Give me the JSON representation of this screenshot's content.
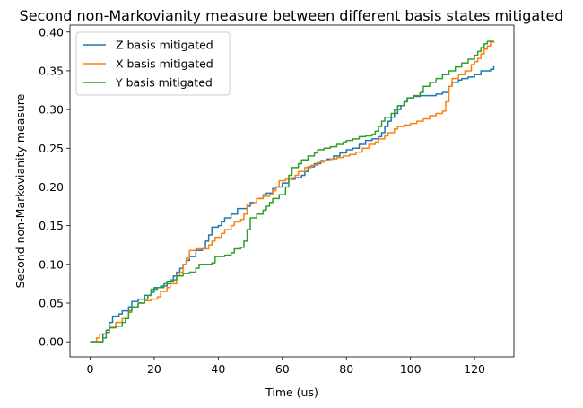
{
  "chart_data": {
    "type": "line",
    "title": "Second non-Markovianity measure between different basis states mitigated",
    "xlabel": "Time (us)",
    "ylabel": "Second non-Markovianity measure",
    "xlim": [
      -6.3,
      132.3
    ],
    "ylim": [
      -0.0195,
      0.409
    ],
    "xticks": [
      0,
      20,
      40,
      60,
      80,
      100,
      120
    ],
    "yticks": [
      0.0,
      0.05,
      0.1,
      0.15,
      0.2,
      0.25,
      0.3,
      0.35,
      0.4
    ],
    "xtick_labels": [
      "0",
      "20",
      "40",
      "60",
      "80",
      "100",
      "120"
    ],
    "ytick_labels": [
      "0.00",
      "0.05",
      "0.10",
      "0.15",
      "0.20",
      "0.25",
      "0.30",
      "0.35",
      "0.40"
    ],
    "grid": false,
    "legend_position": "upper-left",
    "series": [
      {
        "name": "Z basis mitigated",
        "color": "#1f77b4",
        "step": true,
        "points": [
          [
            0,
            0.0
          ],
          [
            3,
            0.0
          ],
          [
            4,
            0.01
          ],
          [
            5,
            0.015
          ],
          [
            6,
            0.025
          ],
          [
            7,
            0.033
          ],
          [
            9,
            0.036
          ],
          [
            10,
            0.04
          ],
          [
            12,
            0.045
          ],
          [
            13,
            0.052
          ],
          [
            15,
            0.055
          ],
          [
            17,
            0.06
          ],
          [
            19,
            0.064
          ],
          [
            20,
            0.07
          ],
          [
            22,
            0.072
          ],
          [
            24,
            0.078
          ],
          [
            26,
            0.085
          ],
          [
            27,
            0.09
          ],
          [
            28,
            0.095
          ],
          [
            29,
            0.1
          ],
          [
            30,
            0.105
          ],
          [
            31,
            0.11
          ],
          [
            33,
            0.118
          ],
          [
            35,
            0.12
          ],
          [
            36,
            0.13
          ],
          [
            37,
            0.138
          ],
          [
            38,
            0.148
          ],
          [
            40,
            0.15
          ],
          [
            41,
            0.155
          ],
          [
            42,
            0.16
          ],
          [
            44,
            0.165
          ],
          [
            46,
            0.172
          ],
          [
            48,
            0.172
          ],
          [
            49,
            0.175
          ],
          [
            50,
            0.18
          ],
          [
            52,
            0.185
          ],
          [
            54,
            0.19
          ],
          [
            55,
            0.192
          ],
          [
            57,
            0.198
          ],
          [
            58,
            0.2
          ],
          [
            60,
            0.205
          ],
          [
            62,
            0.21
          ],
          [
            64,
            0.212
          ],
          [
            66,
            0.215
          ],
          [
            67,
            0.22
          ],
          [
            68,
            0.226
          ],
          [
            70,
            0.23
          ],
          [
            72,
            0.234
          ],
          [
            74,
            0.236
          ],
          [
            76,
            0.24
          ],
          [
            78,
            0.244
          ],
          [
            80,
            0.248
          ],
          [
            82,
            0.25
          ],
          [
            84,
            0.255
          ],
          [
            86,
            0.26
          ],
          [
            88,
            0.262
          ],
          [
            90,
            0.265
          ],
          [
            91,
            0.27
          ],
          [
            92,
            0.278
          ],
          [
            93,
            0.285
          ],
          [
            94,
            0.29
          ],
          [
            95,
            0.295
          ],
          [
            96,
            0.3
          ],
          [
            97,
            0.305
          ],
          [
            98,
            0.31
          ],
          [
            99,
            0.315
          ],
          [
            101,
            0.317
          ],
          [
            103,
            0.318
          ],
          [
            105,
            0.318
          ],
          [
            108,
            0.32
          ],
          [
            110,
            0.322
          ],
          [
            112,
            0.33
          ],
          [
            113,
            0.335
          ],
          [
            115,
            0.338
          ],
          [
            116,
            0.34
          ],
          [
            118,
            0.342
          ],
          [
            120,
            0.345
          ],
          [
            122,
            0.35
          ],
          [
            124,
            0.35
          ],
          [
            125,
            0.352
          ],
          [
            126,
            0.356
          ]
        ]
      },
      {
        "name": "X basis mitigated",
        "color": "#ff7f0e",
        "step": true,
        "points": [
          [
            0,
            0.0
          ],
          [
            2,
            0.005
          ],
          [
            3,
            0.01
          ],
          [
            5,
            0.012
          ],
          [
            6,
            0.02
          ],
          [
            8,
            0.025
          ],
          [
            10,
            0.03
          ],
          [
            12,
            0.038
          ],
          [
            13,
            0.045
          ],
          [
            15,
            0.05
          ],
          [
            17,
            0.053
          ],
          [
            19,
            0.055
          ],
          [
            21,
            0.058
          ],
          [
            22,
            0.065
          ],
          [
            24,
            0.07
          ],
          [
            25,
            0.075
          ],
          [
            27,
            0.085
          ],
          [
            28,
            0.09
          ],
          [
            29,
            0.1
          ],
          [
            30,
            0.108
          ],
          [
            31,
            0.118
          ],
          [
            33,
            0.12
          ],
          [
            36,
            0.12
          ],
          [
            37,
            0.125
          ],
          [
            38,
            0.13
          ],
          [
            39,
            0.135
          ],
          [
            41,
            0.14
          ],
          [
            42,
            0.145
          ],
          [
            44,
            0.15
          ],
          [
            45,
            0.155
          ],
          [
            47,
            0.158
          ],
          [
            48,
            0.165
          ],
          [
            49,
            0.178
          ],
          [
            51,
            0.18
          ],
          [
            52,
            0.185
          ],
          [
            54,
            0.188
          ],
          [
            56,
            0.19
          ],
          [
            57,
            0.195
          ],
          [
            58,
            0.2
          ],
          [
            59,
            0.208
          ],
          [
            61,
            0.21
          ],
          [
            63,
            0.212
          ],
          [
            64,
            0.215
          ],
          [
            65,
            0.22
          ],
          [
            67,
            0.225
          ],
          [
            69,
            0.228
          ],
          [
            71,
            0.232
          ],
          [
            73,
            0.234
          ],
          [
            75,
            0.236
          ],
          [
            77,
            0.238
          ],
          [
            79,
            0.24
          ],
          [
            81,
            0.242
          ],
          [
            83,
            0.245
          ],
          [
            85,
            0.25
          ],
          [
            87,
            0.255
          ],
          [
            89,
            0.258
          ],
          [
            90,
            0.262
          ],
          [
            92,
            0.266
          ],
          [
            93,
            0.27
          ],
          [
            95,
            0.275
          ],
          [
            96,
            0.278
          ],
          [
            98,
            0.28
          ],
          [
            100,
            0.282
          ],
          [
            102,
            0.285
          ],
          [
            104,
            0.288
          ],
          [
            106,
            0.292
          ],
          [
            108,
            0.295
          ],
          [
            110,
            0.298
          ],
          [
            111,
            0.31
          ],
          [
            112,
            0.33
          ],
          [
            113,
            0.34
          ],
          [
            115,
            0.345
          ],
          [
            117,
            0.35
          ],
          [
            119,
            0.358
          ],
          [
            120,
            0.362
          ],
          [
            121,
            0.366
          ],
          [
            122,
            0.372
          ],
          [
            123,
            0.378
          ],
          [
            124,
            0.382
          ],
          [
            125,
            0.388
          ],
          [
            126,
            0.386
          ]
        ]
      },
      {
        "name": "Y basis mitigated",
        "color": "#2ca02c",
        "step": true,
        "points": [
          [
            0,
            0.0
          ],
          [
            3,
            0.0
          ],
          [
            4,
            0.005
          ],
          [
            5,
            0.012
          ],
          [
            6,
            0.018
          ],
          [
            8,
            0.02
          ],
          [
            10,
            0.025
          ],
          [
            11,
            0.03
          ],
          [
            12,
            0.04
          ],
          [
            13,
            0.045
          ],
          [
            15,
            0.05
          ],
          [
            17,
            0.055
          ],
          [
            18,
            0.06
          ],
          [
            19,
            0.068
          ],
          [
            21,
            0.07
          ],
          [
            23,
            0.075
          ],
          [
            25,
            0.08
          ],
          [
            27,
            0.085
          ],
          [
            29,
            0.088
          ],
          [
            31,
            0.09
          ],
          [
            33,
            0.095
          ],
          [
            34,
            0.1
          ],
          [
            36,
            0.1
          ],
          [
            38,
            0.102
          ],
          [
            39,
            0.11
          ],
          [
            42,
            0.112
          ],
          [
            44,
            0.115
          ],
          [
            45,
            0.12
          ],
          [
            47,
            0.122
          ],
          [
            48,
            0.13
          ],
          [
            49,
            0.145
          ],
          [
            50,
            0.16
          ],
          [
            52,
            0.165
          ],
          [
            54,
            0.17
          ],
          [
            55,
            0.175
          ],
          [
            56,
            0.18
          ],
          [
            57,
            0.185
          ],
          [
            59,
            0.19
          ],
          [
            61,
            0.2
          ],
          [
            62,
            0.215
          ],
          [
            63,
            0.225
          ],
          [
            65,
            0.23
          ],
          [
            66,
            0.235
          ],
          [
            68,
            0.24
          ],
          [
            70,
            0.244
          ],
          [
            71,
            0.248
          ],
          [
            73,
            0.25
          ],
          [
            75,
            0.252
          ],
          [
            77,
            0.255
          ],
          [
            79,
            0.258
          ],
          [
            80,
            0.26
          ],
          [
            82,
            0.262
          ],
          [
            84,
            0.265
          ],
          [
            86,
            0.266
          ],
          [
            88,
            0.268
          ],
          [
            89,
            0.272
          ],
          [
            90,
            0.278
          ],
          [
            91,
            0.285
          ],
          [
            92,
            0.29
          ],
          [
            94,
            0.295
          ],
          [
            95,
            0.3
          ],
          [
            96,
            0.305
          ],
          [
            98,
            0.31
          ],
          [
            99,
            0.315
          ],
          [
            101,
            0.318
          ],
          [
            103,
            0.322
          ],
          [
            104,
            0.33
          ],
          [
            106,
            0.335
          ],
          [
            108,
            0.34
          ],
          [
            110,
            0.345
          ],
          [
            112,
            0.35
          ],
          [
            114,
            0.355
          ],
          [
            116,
            0.36
          ],
          [
            118,
            0.365
          ],
          [
            120,
            0.37
          ],
          [
            121,
            0.375
          ],
          [
            122,
            0.38
          ],
          [
            123,
            0.385
          ],
          [
            124,
            0.388
          ],
          [
            126,
            0.388
          ]
        ]
      }
    ]
  }
}
